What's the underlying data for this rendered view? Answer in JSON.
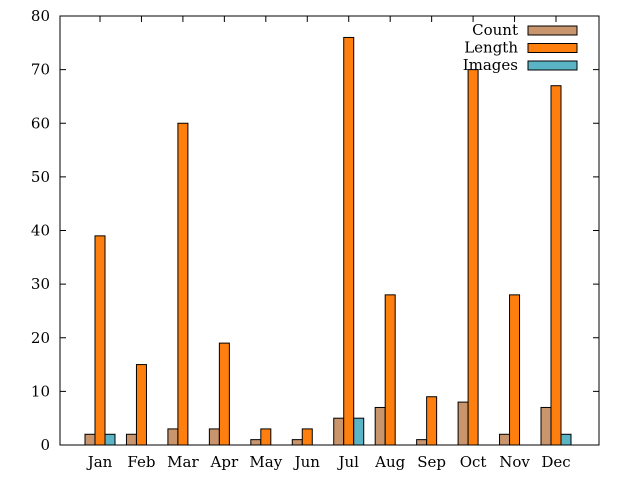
{
  "chart_data": {
    "type": "bar",
    "categories": [
      "Jan",
      "Feb",
      "Mar",
      "Apr",
      "May",
      "Jun",
      "Jul",
      "Aug",
      "Sep",
      "Oct",
      "Nov",
      "Dec"
    ],
    "series": [
      {
        "name": "Count",
        "color": "#c8956c",
        "values": [
          2,
          2,
          3,
          3,
          1,
          1,
          5,
          7,
          1,
          8,
          2,
          7
        ]
      },
      {
        "name": "Length",
        "color": "#ff7f0e",
        "values": [
          39,
          15,
          60,
          19,
          3,
          3,
          76,
          28,
          9,
          70,
          28,
          67
        ]
      },
      {
        "name": "Images",
        "color": "#5ab4c6",
        "values": [
          2,
          0,
          0,
          0,
          0,
          0,
          5,
          0,
          0,
          0,
          0,
          2
        ]
      }
    ],
    "ylim": [
      0,
      80
    ],
    "yticks": [
      0,
      10,
      20,
      30,
      40,
      50,
      60,
      70,
      80
    ],
    "title": "",
    "xlabel": "",
    "ylabel": "",
    "grid": false,
    "legend_position": "top-right"
  }
}
